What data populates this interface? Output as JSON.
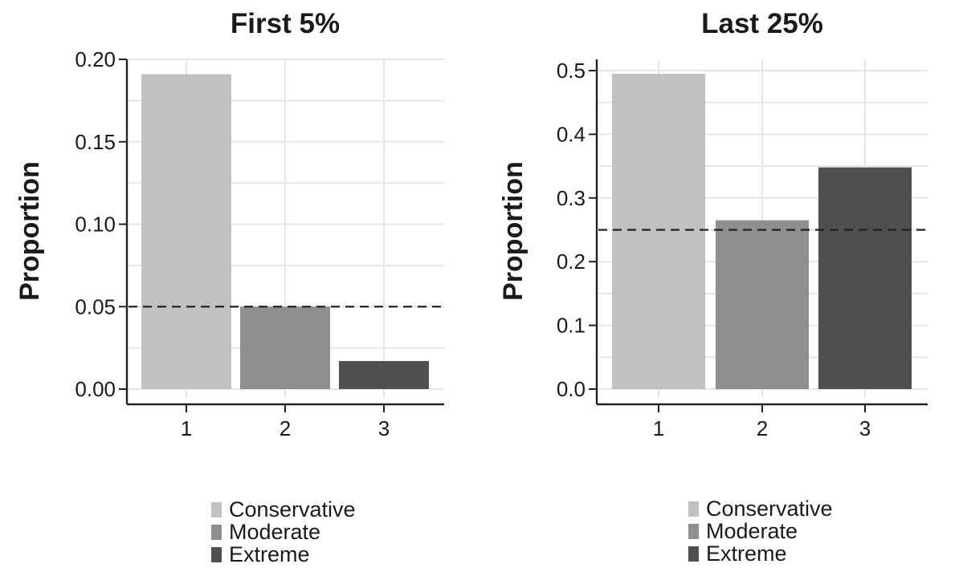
{
  "legend_items": [
    {
      "label": "Conservative",
      "color": "#c0c1c4"
    },
    {
      "label": "Moderate",
      "color": "#8e8f92"
    },
    {
      "label": "Extreme",
      "color": "#4f4f51"
    }
  ],
  "chart_data": [
    {
      "type": "bar",
      "title": "First 5%",
      "xlabel": "",
      "ylabel": "Proportion",
      "categories": [
        "1",
        "2",
        "3"
      ],
      "values": [
        0.191,
        0.05,
        0.017
      ],
      "series_names": [
        "Conservative",
        "Moderate",
        "Extreme"
      ],
      "colors": [
        "#c0c1c4",
        "#8e8f92",
        "#4f4f51"
      ],
      "ylim": [
        0,
        0.2
      ],
      "yticks": [
        "0.00",
        "0.05",
        "0.10",
        "0.15",
        "0.20"
      ],
      "ytick_values": [
        0,
        0.05,
        0.1,
        0.15,
        0.2
      ],
      "reference_line": 0.05,
      "grid": true,
      "legend_position": "bottom"
    },
    {
      "type": "bar",
      "title": "Last 25%",
      "xlabel": "",
      "ylabel": "Proportion",
      "categories": [
        "1",
        "2",
        "3"
      ],
      "values": [
        0.495,
        0.265,
        0.348
      ],
      "series_names": [
        "Conservative",
        "Moderate",
        "Extreme"
      ],
      "colors": [
        "#c0c1c4",
        "#8e8f92",
        "#4f4f51"
      ],
      "ylim": [
        0,
        0.5
      ],
      "yticks": [
        "0.0",
        "0.1",
        "0.2",
        "0.3",
        "0.4",
        "0.5"
      ],
      "ytick_values": [
        0,
        0.1,
        0.2,
        0.3,
        0.4,
        0.5
      ],
      "reference_line": 0.25,
      "grid": true,
      "legend_position": "bottom"
    }
  ]
}
